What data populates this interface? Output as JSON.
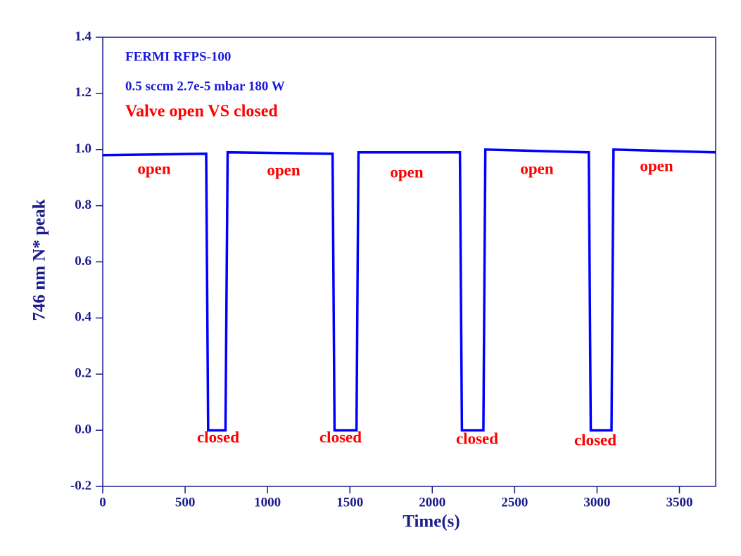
{
  "chart_data": {
    "type": "line",
    "x_label": "Time(s)",
    "y_label": "746 nm N* peak",
    "annotations": [
      "FERMI  RFPS-100",
      "0.5 sccm 2.7e-5 mbar 180 W",
      "Valve open VS closed",
      "open",
      "open",
      "open",
      "open",
      "open",
      "closed",
      "closed",
      "closed",
      "closed"
    ],
    "x": [
      0,
      628,
      640,
      745,
      758,
      1395,
      1407,
      1540,
      1552,
      2168,
      2180,
      2310,
      2322,
      2950,
      2962,
      3088,
      3100,
      3720
    ],
    "series": [
      {
        "color": "#0000ff",
        "values": [
          0.98,
          0.985,
          0,
          0,
          0.99,
          0.985,
          0,
          0,
          0.99,
          0.99,
          0,
          0,
          1.0,
          0.99,
          0,
          0,
          1.0,
          0.99
        ]
      }
    ],
    "xlim": [
      0,
      3720
    ],
    "ylim": [
      -0.2,
      1.4
    ],
    "xticks": [
      0,
      500,
      1000,
      1500,
      2000,
      2500,
      3000,
      3500
    ],
    "yticks": [
      -0.2,
      {
        "value": 0,
        "label": "0.0"
      },
      0.2,
      0.4,
      0.6,
      0.8,
      {
        "value": 1,
        "label": "1.0"
      },
      1.2,
      1.4
    ]
  }
}
